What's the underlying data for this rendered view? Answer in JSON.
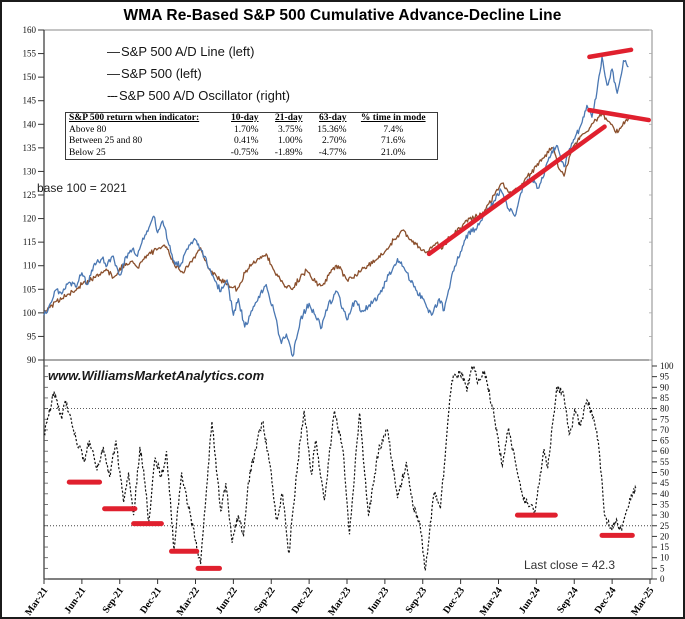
{
  "title": "WMA Re-Based S&P 500 Cumulative Advance-Decline Line",
  "legend": [
    {
      "marker": "—",
      "label": "S&P 500 A/D Line (left)"
    },
    {
      "marker": "—",
      "label": "S&P 500 (left)"
    },
    {
      "marker": "---",
      "label": "S&P 500 A/D Oscillator (right)"
    }
  ],
  "stats_table": {
    "header": [
      "S&P 500 return when indicator:",
      "10-day",
      "21-day",
      "63-day",
      "% time in mode"
    ],
    "rows": [
      [
        "Above 80",
        "1.70%",
        "3.75%",
        "15.36%",
        "7.4%"
      ],
      [
        "Between 25 and 80",
        "0.41%",
        "1.00%",
        "2.70%",
        "71.6%"
      ],
      [
        "Below 25",
        "-0.75%",
        "-1.89%",
        "-4.77%",
        "21.0%"
      ]
    ]
  },
  "annotations": {
    "base_note": "base 100 = 2021",
    "watermark": "www.WilliamsMarketAnalytics.com",
    "last_close": "Last close = 42.3"
  },
  "chart_data": {
    "type": "line",
    "title": "WMA Re-Based S&P 500 Cumulative Advance-Decline Line",
    "x_unit": "months since Mar-2021",
    "x_axis": {
      "tick_labels": [
        "Mar-21",
        "Jun-21",
        "Sep-21",
        "Dec-21",
        "Mar-22",
        "Jun-22",
        "Sep-22",
        "Dec-22",
        "Mar-23",
        "Jun-23",
        "Sep-23",
        "Dec-23",
        "Mar-24",
        "Jun-24",
        "Sep-24",
        "Dec-24",
        "Mar-25"
      ],
      "months_per_tick": 3,
      "range_months": [
        0,
        48
      ]
    },
    "panels": [
      {
        "name": "price",
        "axis": "left",
        "ylim": [
          90,
          160
        ],
        "ticks": [
          90,
          95,
          100,
          105,
          110,
          115,
          120,
          125,
          130,
          135,
          140,
          145,
          150,
          155,
          160
        ],
        "grid": false
      },
      {
        "name": "oscillator",
        "axis": "right",
        "ylim": [
          0,
          100
        ],
        "ticks": [
          0,
          5,
          10,
          15,
          20,
          25,
          30,
          35,
          40,
          45,
          50,
          55,
          60,
          65,
          70,
          75,
          80,
          85,
          90,
          95,
          100
        ],
        "reference_lines": [
          80,
          25
        ],
        "grid": false
      }
    ],
    "last_close_value": 42.3,
    "colors": {
      "ad_line": "#4a77b2",
      "spx": "#8a4f2c",
      "oscillator": "#141414",
      "signal_red": "#e0202e"
    },
    "series": [
      {
        "name": "S&P 500 A/D Line",
        "panel": "price",
        "style": "solid",
        "color": "#4a77b2",
        "points": [
          [
            0,
            99.5
          ],
          [
            0.5,
            102
          ],
          [
            1,
            105
          ],
          [
            1.4,
            104
          ],
          [
            2,
            106.5
          ],
          [
            2.5,
            105.5
          ],
          [
            3,
            108.5
          ],
          [
            3.4,
            106
          ],
          [
            4,
            110.5
          ],
          [
            4.6,
            111.5
          ],
          [
            5,
            110
          ],
          [
            5.4,
            112
          ],
          [
            6,
            108
          ],
          [
            6.5,
            112
          ],
          [
            7,
            113.5
          ],
          [
            7.4,
            112
          ],
          [
            8,
            116.5
          ],
          [
            8.7,
            120.5
          ],
          [
            9,
            117
          ],
          [
            9.4,
            119.5
          ],
          [
            10.3,
            111
          ],
          [
            10.8,
            110
          ],
          [
            11.4,
            113.5
          ],
          [
            12,
            115.5
          ],
          [
            12.7,
            112
          ],
          [
            13.3,
            108
          ],
          [
            14,
            104.5
          ],
          [
            14.5,
            107
          ],
          [
            15,
            99.5
          ],
          [
            15.4,
            103
          ],
          [
            15.9,
            97
          ],
          [
            16.5,
            100.5
          ],
          [
            17,
            103.5
          ],
          [
            17.6,
            106
          ],
          [
            18.2,
            100.5
          ],
          [
            18.8,
            93.5
          ],
          [
            19.2,
            95.5
          ],
          [
            19.7,
            90.8
          ],
          [
            20.3,
            98.5
          ],
          [
            21,
            102
          ],
          [
            21.4,
            99.8
          ],
          [
            22,
            96.9
          ],
          [
            22.5,
            101.5
          ],
          [
            23.2,
            104.5
          ],
          [
            24,
            98.5
          ],
          [
            24.6,
            102.5
          ],
          [
            25.2,
            100.5
          ],
          [
            26,
            102
          ],
          [
            26.6,
            104
          ],
          [
            27.3,
            108
          ],
          [
            28,
            111.5
          ],
          [
            28.6,
            109
          ],
          [
            29.3,
            105.5
          ],
          [
            30,
            103
          ],
          [
            30.7,
            99.5
          ],
          [
            31.3,
            103
          ],
          [
            31.7,
            100.5
          ],
          [
            32.3,
            108
          ],
          [
            33,
            113
          ],
          [
            33.6,
            117
          ],
          [
            34.3,
            118
          ],
          [
            35,
            121.5
          ],
          [
            35.6,
            123.5
          ],
          [
            36.2,
            126
          ],
          [
            36.8,
            122
          ],
          [
            37.3,
            120.5
          ],
          [
            38,
            127
          ],
          [
            38.6,
            128.5
          ],
          [
            39.2,
            126.5
          ],
          [
            40,
            133
          ],
          [
            40.6,
            135.5
          ],
          [
            41.2,
            131
          ],
          [
            41.8,
            136
          ],
          [
            42.4,
            139
          ],
          [
            43,
            144
          ],
          [
            43.4,
            141.5
          ],
          [
            43.8,
            147
          ],
          [
            44.2,
            154.3
          ],
          [
            44.6,
            148.3
          ],
          [
            45,
            151.7
          ],
          [
            45.4,
            146.6
          ],
          [
            45.9,
            153.5
          ],
          [
            46.3,
            152.2
          ]
        ]
      },
      {
        "name": "S&P 500",
        "panel": "price",
        "style": "solid",
        "color": "#8a4f2c",
        "points": [
          [
            0,
            100
          ],
          [
            1,
            102.5
          ],
          [
            2,
            104
          ],
          [
            3,
            106
          ],
          [
            4,
            107.5
          ],
          [
            5,
            109
          ],
          [
            5.5,
            107.5
          ],
          [
            6,
            109.5
          ],
          [
            7,
            111
          ],
          [
            7.5,
            109.5
          ],
          [
            8,
            112
          ],
          [
            9,
            113.5
          ],
          [
            9.7,
            114
          ],
          [
            10.3,
            110.5
          ],
          [
            11,
            108.5
          ],
          [
            11.8,
            111.5
          ],
          [
            12.4,
            113.8
          ],
          [
            13,
            109.5
          ],
          [
            14,
            107
          ],
          [
            14.8,
            105.5
          ],
          [
            15.3,
            105
          ],
          [
            16,
            109
          ],
          [
            17,
            111.5
          ],
          [
            17.6,
            112.5
          ],
          [
            18.3,
            108.5
          ],
          [
            19,
            106
          ],
          [
            19.6,
            105
          ],
          [
            20.3,
            107.5
          ],
          [
            20.8,
            109
          ],
          [
            21.5,
            106.5
          ],
          [
            22,
            105.8
          ],
          [
            22.7,
            108.5
          ],
          [
            23.3,
            110
          ],
          [
            24,
            107
          ],
          [
            24.7,
            108
          ],
          [
            25.3,
            109.5
          ],
          [
            26,
            110.5
          ],
          [
            27,
            113
          ],
          [
            27.7,
            115.5
          ],
          [
            28.4,
            117.5
          ],
          [
            29,
            115.5
          ],
          [
            29.7,
            114
          ],
          [
            30.4,
            113
          ],
          [
            31.1,
            114.8
          ],
          [
            31.5,
            113.5
          ],
          [
            32.1,
            116
          ],
          [
            33,
            118
          ],
          [
            33.7,
            120
          ],
          [
            34.3,
            120.5
          ],
          [
            35,
            122
          ],
          [
            35.7,
            125
          ],
          [
            36.3,
            127.5
          ],
          [
            37,
            125.5
          ],
          [
            37.7,
            126.5
          ],
          [
            38.3,
            129
          ],
          [
            39,
            131
          ],
          [
            39.7,
            133.5
          ],
          [
            40.3,
            135
          ],
          [
            40.8,
            130.5
          ],
          [
            41.2,
            129
          ],
          [
            41.6,
            133
          ],
          [
            42.1,
            136
          ],
          [
            42.7,
            138
          ],
          [
            43.3,
            139.5
          ],
          [
            44.2,
            142.3
          ],
          [
            44.9,
            140
          ],
          [
            45.3,
            138.2
          ],
          [
            45.9,
            140.5
          ],
          [
            46.3,
            141.2
          ]
        ]
      },
      {
        "name": "S&P 500 A/D Oscillator",
        "panel": "oscillator",
        "style": "dashed",
        "color": "#141414",
        "points": [
          [
            0,
            68
          ],
          [
            0.8,
            88
          ],
          [
            1.4,
            75
          ],
          [
            1.7,
            84
          ],
          [
            2.4,
            68
          ],
          [
            3.2,
            55
          ],
          [
            3.6,
            65
          ],
          [
            4.2,
            51
          ],
          [
            4.7,
            62
          ],
          [
            5.2,
            48
          ],
          [
            5.7,
            65
          ],
          [
            6.3,
            36
          ],
          [
            6.7,
            50
          ],
          [
            7.1,
            30
          ],
          [
            7.6,
            62
          ],
          [
            8,
            45
          ],
          [
            8.3,
            27
          ],
          [
            8.8,
            57
          ],
          [
            9.3,
            48
          ],
          [
            9.7,
            60
          ],
          [
            10.3,
            14
          ],
          [
            10.9,
            50
          ],
          [
            11.4,
            35
          ],
          [
            12,
            18
          ],
          [
            12.4,
            7
          ],
          [
            13.3,
            74
          ],
          [
            14,
            32
          ],
          [
            14.4,
            45
          ],
          [
            14.9,
            17
          ],
          [
            15.4,
            30
          ],
          [
            15.8,
            20
          ],
          [
            16.2,
            46
          ],
          [
            16.7,
            60
          ],
          [
            17.3,
            74
          ],
          [
            18,
            50
          ],
          [
            18.4,
            28
          ],
          [
            18.9,
            40
          ],
          [
            19.4,
            12
          ],
          [
            20.1,
            55
          ],
          [
            20.6,
            79
          ],
          [
            21.2,
            49
          ],
          [
            21.5,
            65
          ],
          [
            22.2,
            37
          ],
          [
            23,
            79
          ],
          [
            23.7,
            60
          ],
          [
            24.2,
            21
          ],
          [
            25,
            78
          ],
          [
            25.7,
            30
          ],
          [
            26.5,
            60
          ],
          [
            27.2,
            70
          ],
          [
            28,
            38
          ],
          [
            28.7,
            55
          ],
          [
            29.2,
            35
          ],
          [
            29.8,
            25
          ],
          [
            30.2,
            4
          ],
          [
            30.9,
            40
          ],
          [
            31.4,
            33
          ],
          [
            32.3,
            93
          ],
          [
            33.1,
            97
          ],
          [
            33.5,
            88
          ],
          [
            33.9,
            100
          ],
          [
            34.4,
            93
          ],
          [
            34.9,
            97
          ],
          [
            35.5,
            81
          ],
          [
            35.9,
            68
          ],
          [
            36.3,
            53
          ],
          [
            36.8,
            71
          ],
          [
            37.3,
            56
          ],
          [
            37.9,
            39
          ],
          [
            38.4,
            34
          ],
          [
            38.9,
            32
          ],
          [
            39.6,
            61
          ],
          [
            39.9,
            52
          ],
          [
            40.6,
            90
          ],
          [
            41.1,
            88
          ],
          [
            41.6,
            68
          ],
          [
            42.1,
            79
          ],
          [
            42.5,
            72
          ],
          [
            43,
            84
          ],
          [
            43.4,
            78
          ],
          [
            43.9,
            65
          ],
          [
            44.4,
            30
          ],
          [
            44.9,
            24
          ],
          [
            45.4,
            27
          ],
          [
            45.7,
            23
          ],
          [
            46.4,
            38
          ],
          [
            46.9,
            42.3
          ]
        ]
      }
    ],
    "red_trendlines": [
      {
        "panel": "price",
        "from": [
          30.5,
          112.5
        ],
        "to": [
          44.4,
          139.5
        ],
        "note": "rising support"
      },
      {
        "panel": "price",
        "from": [
          43.2,
          154.3
        ],
        "to": [
          46.5,
          155.8
        ],
        "note": "upper resistance"
      },
      {
        "panel": "price",
        "from": [
          43.2,
          143.0
        ],
        "to": [
          47.9,
          140.9
        ],
        "note": "lower resistance"
      }
    ],
    "red_markers": [
      {
        "panel": "oscillator",
        "x1": 2.0,
        "x2": 4.4,
        "y": 45.5
      },
      {
        "panel": "oscillator",
        "x1": 4.8,
        "x2": 7.2,
        "y": 33
      },
      {
        "panel": "oscillator",
        "x1": 7.1,
        "x2": 9.3,
        "y": 26
      },
      {
        "panel": "oscillator",
        "x1": 10.1,
        "x2": 12.1,
        "y": 13
      },
      {
        "panel": "oscillator",
        "x1": 12.2,
        "x2": 13.9,
        "y": 5
      },
      {
        "panel": "oscillator",
        "x1": 37.5,
        "x2": 40.5,
        "y": 30
      },
      {
        "panel": "oscillator",
        "x1": 44.2,
        "x2": 46.6,
        "y": 20.5
      }
    ]
  }
}
